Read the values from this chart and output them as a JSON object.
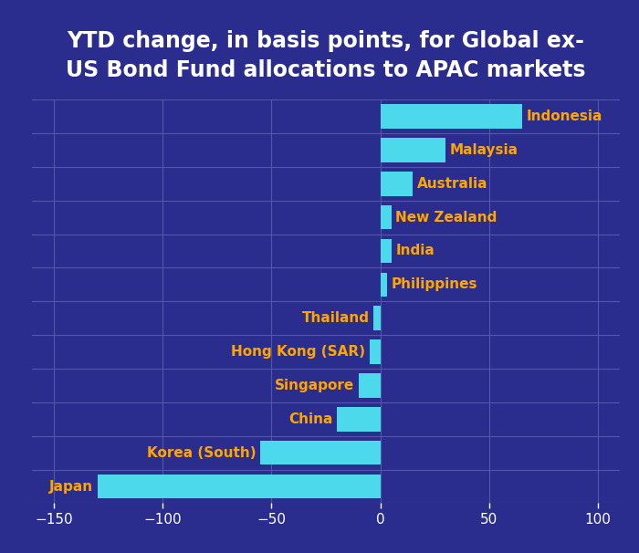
{
  "title": "YTD change, in basis points, for Global ex-\nUS Bond Fund allocations to APAC markets",
  "categories": [
    "Indonesia",
    "Malaysia",
    "Australia",
    "New Zealand",
    "India",
    "Philippines",
    "Thailand",
    "Hong Kong (SAR)",
    "Singapore",
    "China",
    "Korea (South)",
    "Japan"
  ],
  "values": [
    65,
    30,
    15,
    5,
    5,
    3,
    -3,
    -5,
    -10,
    -20,
    -55,
    -130
  ],
  "bar_color": "#4DD9EC",
  "background_color": "#2B2D8E",
  "text_color_labels": "#FFA500",
  "text_color_title": "#FFFFFF",
  "grid_color": "#5555AA",
  "xlim": [
    -160,
    110
  ],
  "xticks": [
    -150,
    -100,
    -50,
    0,
    50,
    100
  ],
  "title_fontsize": 17,
  "label_fontsize": 11,
  "tick_fontsize": 11,
  "bar_height": 0.72
}
